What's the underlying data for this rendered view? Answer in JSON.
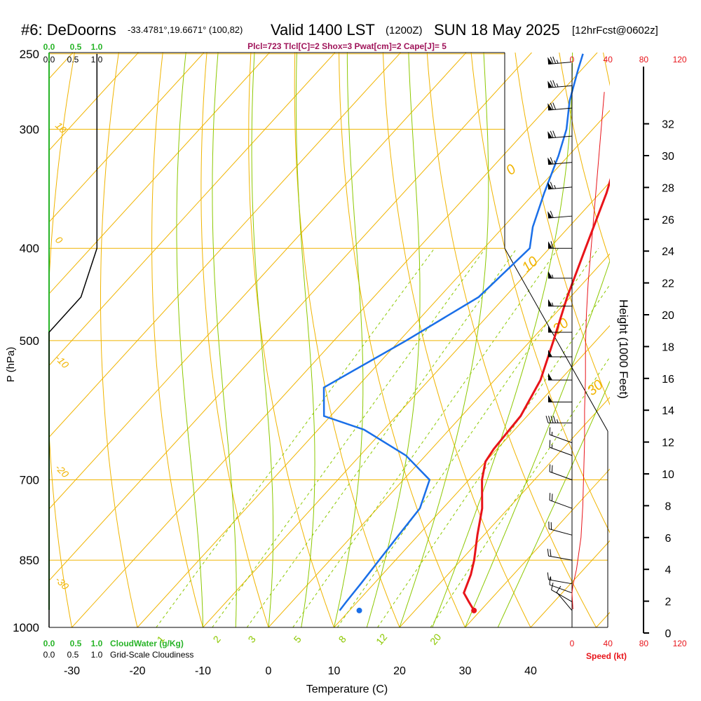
{
  "header": {
    "station": "#6: DeDoorns",
    "location": "-33.4781°,19.6671° (100,82)",
    "valid": "Valid 1400 LST",
    "utc": "(1200Z)",
    "date": "SUN 18 May 2025",
    "forecast": "[12hrFcst@0602z]",
    "indices": "Plcl=723 Tlcl[C]=2 Shox=3 Pwat[cm]=2 Cape[J]= 5"
  },
  "colors": {
    "temperature": "#e8141a",
    "dewpoint": "#1a6fe8",
    "isotherm": "#f0b400",
    "dry_adiabat": "#f0b400",
    "moist_adiabat": "#8cc800",
    "mixing_ratio": "#8cc800",
    "cloudwater": "#28b428",
    "wind_speed": "#e8141a"
  },
  "chart_data": {
    "type": "line",
    "title": "Skew-T log-P sounding, DeDoorns",
    "xlabel": "Temperature (C)",
    "ylabel": "P (hPa)",
    "right_axis_label": "Height (1000 Feet)",
    "speed_label": "Speed (kt)",
    "cloudwater_label": "CloudWater (g/Kg)",
    "cloudiness_label": "Grid-Scale Cloudiness",
    "ylim": [
      1000,
      250
    ],
    "xlim": [
      -35,
      45
    ],
    "pressure_ticks": [
      250,
      300,
      400,
      500,
      700,
      850,
      1000
    ],
    "temperature_ticks": [
      -30,
      -20,
      -10,
      0,
      10,
      20,
      30,
      40
    ],
    "height_ticks": [
      0,
      2,
      4,
      6,
      8,
      10,
      12,
      14,
      16,
      18,
      20,
      22,
      24,
      26,
      28,
      30,
      32
    ],
    "speed_ticks": [
      0,
      40,
      80,
      120
    ],
    "cloudwater_ticks": [
      "0.0",
      "0.5",
      "1.0"
    ],
    "cloudiness_ticks": [
      "0.0",
      "0.5",
      "1.0"
    ],
    "isotherm_labels": [
      "10",
      "0",
      "-10",
      "-20",
      "-30"
    ],
    "dry_adiabat_labels": [
      "0",
      "10",
      "20",
      "30"
    ],
    "mixing_ratio_labels": [
      "1",
      "2",
      "3",
      "5",
      "8",
      "12",
      "20"
    ],
    "series": [
      {
        "name": "Temperature",
        "points": [
          [
            960,
            29
          ],
          [
            940,
            27
          ],
          [
            920,
            25
          ],
          [
            880,
            23.5
          ],
          [
            850,
            22
          ],
          [
            800,
            19
          ],
          [
            750,
            16
          ],
          [
            700,
            12
          ],
          [
            670,
            10
          ],
          [
            650,
            9.5
          ],
          [
            600,
            9
          ],
          [
            550,
            7
          ],
          [
            500,
            3.5
          ],
          [
            450,
            -0.5
          ],
          [
            400,
            -4.5
          ],
          [
            350,
            -9
          ],
          [
            300,
            -15
          ],
          [
            250,
            -22
          ]
        ]
      },
      {
        "name": "Dewpoint",
        "points": [
          [
            960,
            8.5
          ],
          [
            940,
            8.3
          ],
          [
            900,
            8
          ],
          [
            850,
            7.5
          ],
          [
            800,
            7
          ],
          [
            750,
            6.5
          ],
          [
            700,
            4
          ],
          [
            660,
            -3
          ],
          [
            620,
            -13
          ],
          [
            600,
            -21
          ],
          [
            560,
            -25
          ],
          [
            500,
            -19
          ],
          [
            450,
            -14
          ],
          [
            400,
            -13
          ],
          [
            380,
            -15.5
          ],
          [
            350,
            -18.5
          ],
          [
            320,
            -21.5
          ],
          [
            300,
            -24
          ],
          [
            280,
            -27.5
          ],
          [
            260,
            -30.5
          ],
          [
            250,
            -32
          ]
        ]
      },
      {
        "name": "Cloudiness",
        "points": [
          [
            1000,
            0
          ],
          [
            490,
            0
          ],
          [
            450,
            0.5
          ],
          [
            400,
            0.75
          ],
          [
            250,
            0.75
          ]
        ]
      },
      {
        "name": "Wind speed vs height",
        "points": [
          [
            1.5,
            1
          ],
          [
            2.5,
            0
          ],
          [
            3,
            1
          ],
          [
            4,
            5
          ],
          [
            6,
            10
          ],
          [
            8,
            12
          ],
          [
            10,
            13
          ],
          [
            12,
            14
          ],
          [
            14,
            14
          ],
          [
            16,
            15
          ],
          [
            18,
            15
          ],
          [
            20,
            16
          ],
          [
            22,
            18
          ],
          [
            24,
            21
          ],
          [
            26,
            24
          ],
          [
            28,
            27
          ],
          [
            30,
            30
          ],
          [
            32,
            33
          ],
          [
            34,
            36
          ]
        ]
      }
    ],
    "surface_dewpoint_dot": [
      960,
      11.5
    ],
    "wind_barbs": [
      {
        "p": 960,
        "ddd": 320,
        "kt": 8
      },
      {
        "p": 940,
        "ddd": 300,
        "kt": 10
      },
      {
        "p": 920,
        "ddd": 290,
        "kt": 10
      },
      {
        "p": 900,
        "ddd": 280,
        "kt": 15
      },
      {
        "p": 850,
        "ddd": 280,
        "kt": 20
      },
      {
        "p": 800,
        "ddd": 285,
        "kt": 20
      },
      {
        "p": 750,
        "ddd": 290,
        "kt": 20
      },
      {
        "p": 700,
        "ddd": 290,
        "kt": 20
      },
      {
        "p": 660,
        "ddd": 290,
        "kt": 15
      },
      {
        "p": 640,
        "ddd": 290,
        "kt": 15
      },
      {
        "p": 610,
        "ddd": 270,
        "kt": 45
      },
      {
        "p": 580,
        "ddd": 270,
        "kt": 50
      },
      {
        "p": 550,
        "ddd": 270,
        "kt": 50
      },
      {
        "p": 520,
        "ddd": 270,
        "kt": 50
      },
      {
        "p": 490,
        "ddd": 270,
        "kt": 50
      },
      {
        "p": 460,
        "ddd": 270,
        "kt": 55
      },
      {
        "p": 430,
        "ddd": 270,
        "kt": 55
      },
      {
        "p": 400,
        "ddd": 270,
        "kt": 60
      },
      {
        "p": 370,
        "ddd": 265,
        "kt": 60
      },
      {
        "p": 345,
        "ddd": 265,
        "kt": 65
      },
      {
        "p": 325,
        "ddd": 265,
        "kt": 65
      },
      {
        "p": 305,
        "ddd": 265,
        "kt": 70
      },
      {
        "p": 285,
        "ddd": 265,
        "kt": 70
      },
      {
        "p": 270,
        "ddd": 265,
        "kt": 75
      },
      {
        "p": 255,
        "ddd": 265,
        "kt": 75
      }
    ]
  }
}
